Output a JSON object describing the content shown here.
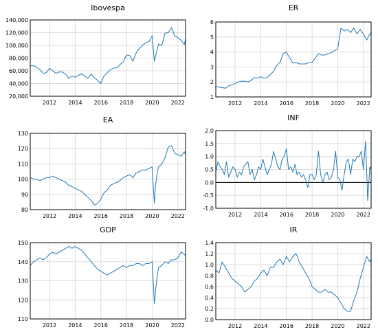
{
  "figure": {
    "colors": {
      "line": "#1f78b4",
      "grid": "#dcdcdc",
      "frame": "#000000"
    }
  },
  "chart_data": [
    {
      "type": "line",
      "title": "Ibovespa",
      "xlim": [
        2010.5,
        2022.6
      ],
      "ylim": [
        20000,
        140000
      ],
      "x_ticks": [
        2012,
        2014,
        2016,
        2018,
        2020,
        2022
      ],
      "y_ticks": [
        20000,
        40000,
        60000,
        80000,
        100000,
        120000,
        140000
      ],
      "y_tick_labels": [
        "20,000",
        "40,000",
        "60,000",
        "80,000",
        "100,000",
        "120,000",
        "140,000"
      ],
      "grid": true,
      "series": [
        {
          "x": [
            2010.5,
            2010.75,
            2011.0,
            2011.25,
            2011.5,
            2011.75,
            2012.0,
            2012.25,
            2012.5,
            2012.75,
            2013.0,
            2013.25,
            2013.5,
            2013.75,
            2014.0,
            2014.25,
            2014.5,
            2014.75,
            2015.0,
            2015.25,
            2015.5,
            2015.75,
            2016.0,
            2016.25,
            2016.5,
            2016.75,
            2017.0,
            2017.25,
            2017.5,
            2017.75,
            2018.0,
            2018.25,
            2018.5,
            2018.75,
            2019.0,
            2019.25,
            2019.5,
            2019.75,
            2020.0,
            2020.17,
            2020.25,
            2020.5,
            2020.75,
            2021.0,
            2021.25,
            2021.5,
            2021.75,
            2022.0,
            2022.25,
            2022.5,
            2022.6
          ],
          "y": [
            68000,
            68000,
            66000,
            62000,
            56000,
            57000,
            64000,
            60000,
            56000,
            58000,
            58000,
            55000,
            48000,
            52000,
            50000,
            53000,
            55000,
            52000,
            48000,
            55000,
            49000,
            45000,
            40000,
            52000,
            57000,
            62000,
            64000,
            65000,
            70000,
            74000,
            85000,
            84000,
            75000,
            88000,
            95000,
            100000,
            104000,
            106000,
            115000,
            75000,
            82000,
            102000,
            100000,
            119000,
            120000,
            128000,
            115000,
            112000,
            108000,
            101000,
            110000
          ]
        }
      ]
    },
    {
      "type": "line",
      "title": "ER",
      "xlim": [
        2010.5,
        2022.6
      ],
      "ylim": [
        1,
        6
      ],
      "x_ticks": [
        2012,
        2014,
        2016,
        2018,
        2020,
        2022
      ],
      "y_ticks": [
        1,
        2,
        3,
        4,
        5,
        6
      ],
      "y_tick_labels": [
        "1",
        "2",
        "3",
        "4",
        "5",
        "6"
      ],
      "grid": true,
      "series": [
        {
          "x": [
            2010.5,
            2010.75,
            2011.0,
            2011.25,
            2011.5,
            2011.75,
            2012.0,
            2012.25,
            2012.5,
            2012.75,
            2013.0,
            2013.25,
            2013.5,
            2013.75,
            2014.0,
            2014.25,
            2014.5,
            2014.75,
            2015.0,
            2015.25,
            2015.5,
            2015.75,
            2016.0,
            2016.25,
            2016.5,
            2016.75,
            2017.0,
            2017.25,
            2017.5,
            2017.75,
            2018.0,
            2018.25,
            2018.5,
            2018.75,
            2019.0,
            2019.25,
            2019.5,
            2019.75,
            2020.0,
            2020.25,
            2020.5,
            2020.75,
            2021.0,
            2021.25,
            2021.5,
            2021.75,
            2022.0,
            2022.25,
            2022.5,
            2022.6
          ],
          "y": [
            1.7,
            1.65,
            1.62,
            1.58,
            1.75,
            1.8,
            1.9,
            2.0,
            2.05,
            2.05,
            2.0,
            2.1,
            2.3,
            2.25,
            2.35,
            2.25,
            2.3,
            2.5,
            2.7,
            3.1,
            3.3,
            3.9,
            4.0,
            3.6,
            3.25,
            3.3,
            3.2,
            3.2,
            3.2,
            3.3,
            3.3,
            3.6,
            3.9,
            3.8,
            3.8,
            3.9,
            3.95,
            4.1,
            4.2,
            5.6,
            5.4,
            5.5,
            5.3,
            5.6,
            5.2,
            5.5,
            5.2,
            4.8,
            5.2,
            5.3
          ]
        }
      ]
    },
    {
      "type": "line",
      "title": "EA",
      "xlim": [
        2010.5,
        2022.6
      ],
      "ylim": [
        80,
        130
      ],
      "x_ticks": [
        2012,
        2014,
        2016,
        2018,
        2020,
        2022
      ],
      "y_ticks": [
        80,
        90,
        100,
        110,
        120,
        130
      ],
      "y_tick_labels": [
        "80",
        "90",
        "100",
        "110",
        "120",
        "130"
      ],
      "grid": true,
      "series": [
        {
          "x": [
            2010.5,
            2010.75,
            2011.0,
            2011.25,
            2011.5,
            2011.75,
            2012.0,
            2012.25,
            2012.5,
            2012.75,
            2013.0,
            2013.25,
            2013.5,
            2013.75,
            2014.0,
            2014.25,
            2014.5,
            2014.75,
            2015.0,
            2015.25,
            2015.5,
            2015.75,
            2016.0,
            2016.25,
            2016.5,
            2016.75,
            2017.0,
            2017.25,
            2017.5,
            2017.75,
            2018.0,
            2018.25,
            2018.5,
            2018.75,
            2019.0,
            2019.25,
            2019.5,
            2019.75,
            2020.0,
            2020.17,
            2020.25,
            2020.4,
            2020.5,
            2020.75,
            2021.0,
            2021.25,
            2021.5,
            2021.75,
            2022.0,
            2022.25,
            2022.5,
            2022.6
          ],
          "y": [
            101,
            100,
            100,
            99,
            100,
            101,
            101,
            102,
            101,
            100,
            99,
            98,
            96,
            95,
            94,
            93,
            92,
            90,
            88,
            86,
            83,
            84,
            87,
            91,
            93,
            96,
            97,
            98,
            99,
            101,
            102,
            103,
            101,
            104,
            105,
            106,
            106,
            107,
            108,
            84,
            95,
            105,
            108,
            110,
            114,
            121,
            122,
            117,
            116,
            115,
            118,
            116
          ]
        }
      ]
    },
    {
      "type": "line",
      "title": "INF",
      "xlim": [
        2010.5,
        2022.6
      ],
      "ylim": [
        -1.0,
        2.0
      ],
      "x_ticks": [
        2012,
        2014,
        2016,
        2018,
        2020,
        2022
      ],
      "y_ticks": [
        -1.0,
        -0.5,
        0.0,
        0.5,
        1.0,
        1.5,
        2.0
      ],
      "y_tick_labels": [
        "-1.0",
        "-0.5",
        "0.0",
        "0.5",
        "1.0",
        "1.5",
        "2.0"
      ],
      "grid": true,
      "reference_line": 0,
      "series": [
        {
          "x": [
            2010.5,
            2010.67,
            2010.83,
            2011.0,
            2011.17,
            2011.33,
            2011.5,
            2011.67,
            2011.83,
            2012.0,
            2012.17,
            2012.33,
            2012.5,
            2012.67,
            2012.83,
            2013.0,
            2013.17,
            2013.33,
            2013.5,
            2013.67,
            2013.83,
            2014.0,
            2014.17,
            2014.33,
            2014.5,
            2014.67,
            2014.83,
            2015.0,
            2015.17,
            2015.33,
            2015.5,
            2015.67,
            2015.83,
            2016.0,
            2016.17,
            2016.33,
            2016.5,
            2016.67,
            2016.83,
            2017.0,
            2017.17,
            2017.33,
            2017.5,
            2017.67,
            2017.83,
            2018.0,
            2018.17,
            2018.33,
            2018.5,
            2018.67,
            2018.83,
            2019.0,
            2019.17,
            2019.33,
            2019.5,
            2019.67,
            2019.83,
            2020.0,
            2020.17,
            2020.33,
            2020.5,
            2020.67,
            2020.83,
            2021.0,
            2021.17,
            2021.33,
            2021.5,
            2021.67,
            2021.83,
            2022.0,
            2022.17,
            2022.33,
            2022.5,
            2022.6
          ],
          "y": [
            0.4,
            0.8,
            0.6,
            0.5,
            0.3,
            0.8,
            0.2,
            0.4,
            0.6,
            0.5,
            0.2,
            0.4,
            0.3,
            0.6,
            0.7,
            0.8,
            0.3,
            0.5,
            0.1,
            0.3,
            0.6,
            0.5,
            0.9,
            0.6,
            0.3,
            0.5,
            0.7,
            1.2,
            0.9,
            0.6,
            0.5,
            0.9,
            1.0,
            1.3,
            0.5,
            0.6,
            0.4,
            0.7,
            0.3,
            0.4,
            0.2,
            0.3,
            0.1,
            -0.2,
            0.3,
            0.3,
            0.1,
            0.3,
            1.2,
            0.3,
            0.0,
            0.3,
            0.4,
            0.1,
            0.2,
            0.5,
            1.2,
            0.2,
            0.1,
            -0.3,
            0.3,
            0.8,
            0.9,
            0.3,
            0.9,
            0.8,
            1.0,
            1.0,
            1.2,
            0.5,
            1.6,
            -0.7,
            0.6,
            0.5
          ]
        }
      ]
    },
    {
      "type": "line",
      "title": "GDP",
      "xlim": [
        2010.5,
        2022.6
      ],
      "ylim": [
        110,
        150
      ],
      "x_ticks": [
        2012,
        2014,
        2016,
        2018,
        2020,
        2022
      ],
      "y_ticks": [
        110,
        120,
        130,
        140,
        150
      ],
      "y_tick_labels": [
        "110",
        "120",
        "130",
        "140",
        "150"
      ],
      "grid": true,
      "series": [
        {
          "x": [
            2010.5,
            2010.75,
            2011.0,
            2011.25,
            2011.5,
            2011.75,
            2012.0,
            2012.25,
            2012.5,
            2012.75,
            2013.0,
            2013.25,
            2013.5,
            2013.75,
            2014.0,
            2014.25,
            2014.5,
            2014.75,
            2015.0,
            2015.25,
            2015.5,
            2015.75,
            2016.0,
            2016.25,
            2016.5,
            2016.75,
            2017.0,
            2017.25,
            2017.5,
            2017.75,
            2018.0,
            2018.25,
            2018.5,
            2018.75,
            2019.0,
            2019.25,
            2019.5,
            2019.75,
            2020.0,
            2020.17,
            2020.25,
            2020.4,
            2020.5,
            2020.75,
            2021.0,
            2021.25,
            2021.5,
            2021.75,
            2022.0,
            2022.25,
            2022.5,
            2022.6
          ],
          "y": [
            138,
            140,
            141,
            142,
            141,
            142,
            144,
            145,
            144,
            145,
            146,
            147,
            148,
            147,
            148,
            147,
            146,
            144,
            142,
            140,
            138,
            136,
            135,
            134,
            133,
            134,
            135,
            136,
            137,
            138,
            137,
            138,
            138,
            139,
            139,
            138,
            139,
            139,
            140,
            118,
            124,
            133,
            137,
            138,
            140,
            139,
            141,
            141,
            142,
            145,
            144,
            143
          ]
        }
      ]
    },
    {
      "type": "line",
      "title": "IR",
      "xlim": [
        2010.5,
        2022.6
      ],
      "ylim": [
        0.0,
        1.4
      ],
      "x_ticks": [
        2012,
        2014,
        2016,
        2018,
        2020,
        2022
      ],
      "y_ticks": [
        0.0,
        0.2,
        0.4,
        0.6,
        0.8,
        1.0,
        1.2,
        1.4
      ],
      "y_tick_labels": [
        "0.0",
        "0.2",
        "0.4",
        "0.6",
        "0.8",
        "1.0",
        "1.2",
        "1.4"
      ],
      "grid": true,
      "series": [
        {
          "x": [
            2010.5,
            2010.75,
            2011.0,
            2011.25,
            2011.5,
            2011.75,
            2012.0,
            2012.25,
            2012.5,
            2012.75,
            2013.0,
            2013.25,
            2013.5,
            2013.75,
            2014.0,
            2014.25,
            2014.5,
            2014.75,
            2015.0,
            2015.25,
            2015.5,
            2015.75,
            2016.0,
            2016.25,
            2016.5,
            2016.75,
            2017.0,
            2017.25,
            2017.5,
            2017.75,
            2018.0,
            2018.25,
            2018.5,
            2018.75,
            2019.0,
            2019.25,
            2019.5,
            2019.75,
            2020.0,
            2020.25,
            2020.5,
            2020.75,
            2021.0,
            2021.25,
            2021.5,
            2021.75,
            2022.0,
            2022.25,
            2022.5,
            2022.6
          ],
          "y": [
            0.9,
            0.85,
            1.05,
            0.95,
            0.85,
            0.75,
            0.7,
            0.65,
            0.6,
            0.5,
            0.55,
            0.6,
            0.7,
            0.75,
            0.85,
            0.9,
            0.8,
            0.95,
            0.95,
            1.05,
            1.1,
            1.0,
            1.15,
            1.05,
            1.15,
            1.2,
            1.05,
            0.95,
            0.85,
            0.75,
            0.6,
            0.55,
            0.5,
            0.5,
            0.55,
            0.5,
            0.5,
            0.45,
            0.4,
            0.3,
            0.2,
            0.15,
            0.15,
            0.35,
            0.5,
            0.75,
            0.95,
            1.15,
            1.05,
            1.1
          ]
        }
      ]
    }
  ]
}
